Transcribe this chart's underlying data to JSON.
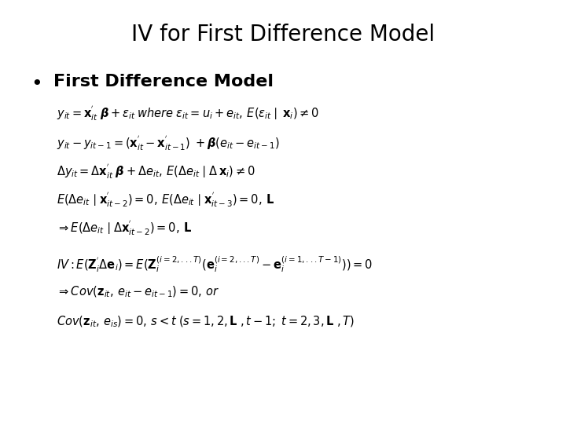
{
  "title": "IV for First Difference Model",
  "title_fontsize": 20,
  "background_color": "#ffffff",
  "bullet_text": "First Difference Model",
  "bullet_fontsize": 16,
  "text_color": "#000000",
  "fig_width": 7.2,
  "fig_height": 5.4,
  "fig_dpi": 100
}
